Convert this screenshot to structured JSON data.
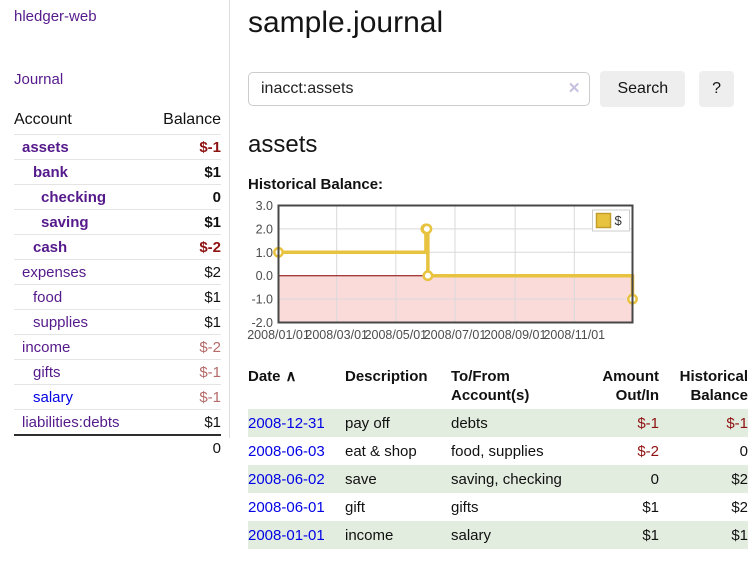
{
  "app": {
    "title": "hledger-web"
  },
  "sidebar": {
    "journal_link": "Journal",
    "accounts": {
      "header_account": "Account",
      "header_balance": "Balance",
      "rows": [
        {
          "name": "assets",
          "indent": 1,
          "bold": true,
          "link": "purple",
          "balance": "$-1",
          "amount_class": "neg"
        },
        {
          "name": "bank",
          "indent": 2,
          "bold": true,
          "link": "purple",
          "balance": "$1",
          "amount_class": "pos"
        },
        {
          "name": "checking",
          "indent": 3,
          "bold": true,
          "link": "purple",
          "balance": "0",
          "amount_class": "pos"
        },
        {
          "name": "saving",
          "indent": 3,
          "bold": true,
          "link": "purple",
          "balance": "$1",
          "amount_class": "pos"
        },
        {
          "name": "cash",
          "indent": 2,
          "bold": true,
          "link": "purple",
          "balance": "$-2",
          "amount_class": "neg"
        },
        {
          "name": "expenses",
          "indent": 1,
          "bold": false,
          "link": "purple",
          "balance": "$2",
          "amount_class": "pos"
        },
        {
          "name": "food",
          "indent": 2,
          "bold": false,
          "link": "purple",
          "balance": "$1",
          "amount_class": "pos"
        },
        {
          "name": "supplies",
          "indent": 2,
          "bold": false,
          "link": "purple",
          "balance": "$1",
          "amount_class": "pos"
        },
        {
          "name": "income",
          "indent": 1,
          "bold": false,
          "link": "purple",
          "balance": "$-2",
          "amount_class": "neg-muted"
        },
        {
          "name": "gifts",
          "indent": 2,
          "bold": false,
          "link": "purple",
          "balance": "$-1",
          "amount_class": "neg-muted"
        },
        {
          "name": "salary",
          "indent": 2,
          "bold": false,
          "link": "blue",
          "balance": "$-1",
          "amount_class": "neg-muted"
        },
        {
          "name": "liabilities:debts",
          "indent": 1,
          "bold": false,
          "link": "purple",
          "balance": "$1",
          "amount_class": "pos"
        }
      ],
      "total": "0"
    }
  },
  "main": {
    "title": "sample.journal",
    "search": {
      "value": "inacct:assets",
      "clear_icon": "✕",
      "button_label": "Search",
      "help_label": "?"
    },
    "account_heading": "assets"
  },
  "chart_data": {
    "type": "line",
    "step": true,
    "title": "Historical Balance:",
    "series": [
      {
        "name": "$",
        "color": "#e8c340",
        "points": [
          [
            "2008-01-01",
            1
          ],
          [
            "2008-06-01",
            2
          ],
          [
            "2008-06-02",
            2
          ],
          [
            "2008-06-03",
            0
          ],
          [
            "2008-12-31",
            -1
          ]
        ]
      }
    ],
    "xlim": [
      "2008-01-01",
      "2008-12-31"
    ],
    "ylim": [
      -2,
      3
    ],
    "yticks": [
      "3.0",
      "2.0",
      "1.0",
      "0.0",
      "-1.0",
      "-2.0"
    ],
    "xticks": [
      "2008/01/01",
      "2008/03/01",
      "2008/05/01",
      "2008/07/01",
      "2008/09/01",
      "2008/11/01"
    ],
    "legend_position": "top-right",
    "legend_label": "$",
    "grid": true,
    "grid_color": "#d9d9d9",
    "border_color": "#474747",
    "negative_region_fill": "#fbdada",
    "zero_line_color": "#8b0000",
    "axis_label_color": "#4d4d4d"
  },
  "register": {
    "headers": {
      "date": "Date",
      "sort_icon": "∧",
      "description": "Description",
      "accounts": "To/From Account(s)",
      "amount": "Amount Out/In",
      "balance": "Historical Balance"
    },
    "rows": [
      {
        "date": "2008-12-31",
        "description": "pay off",
        "accounts": "debts",
        "amount": "$-1",
        "amount_class": "neg",
        "balance": "$-1",
        "balance_class": "neg"
      },
      {
        "date": "2008-06-03",
        "description": "eat & shop",
        "accounts": "food, supplies",
        "amount": "$-2",
        "amount_class": "neg",
        "balance": "0",
        "balance_class": "pos"
      },
      {
        "date": "2008-06-02",
        "description": "save",
        "accounts": "saving, checking",
        "amount": "0",
        "amount_class": "pos",
        "balance": "$2",
        "balance_class": "pos"
      },
      {
        "date": "2008-06-01",
        "description": "gift",
        "accounts": "gifts",
        "amount": "$1",
        "amount_class": "pos",
        "balance": "$2",
        "balance_class": "pos"
      },
      {
        "date": "2008-01-01",
        "description": "income",
        "accounts": "salary",
        "amount": "$1",
        "amount_class": "pos",
        "balance": "$1",
        "balance_class": "pos"
      }
    ]
  }
}
